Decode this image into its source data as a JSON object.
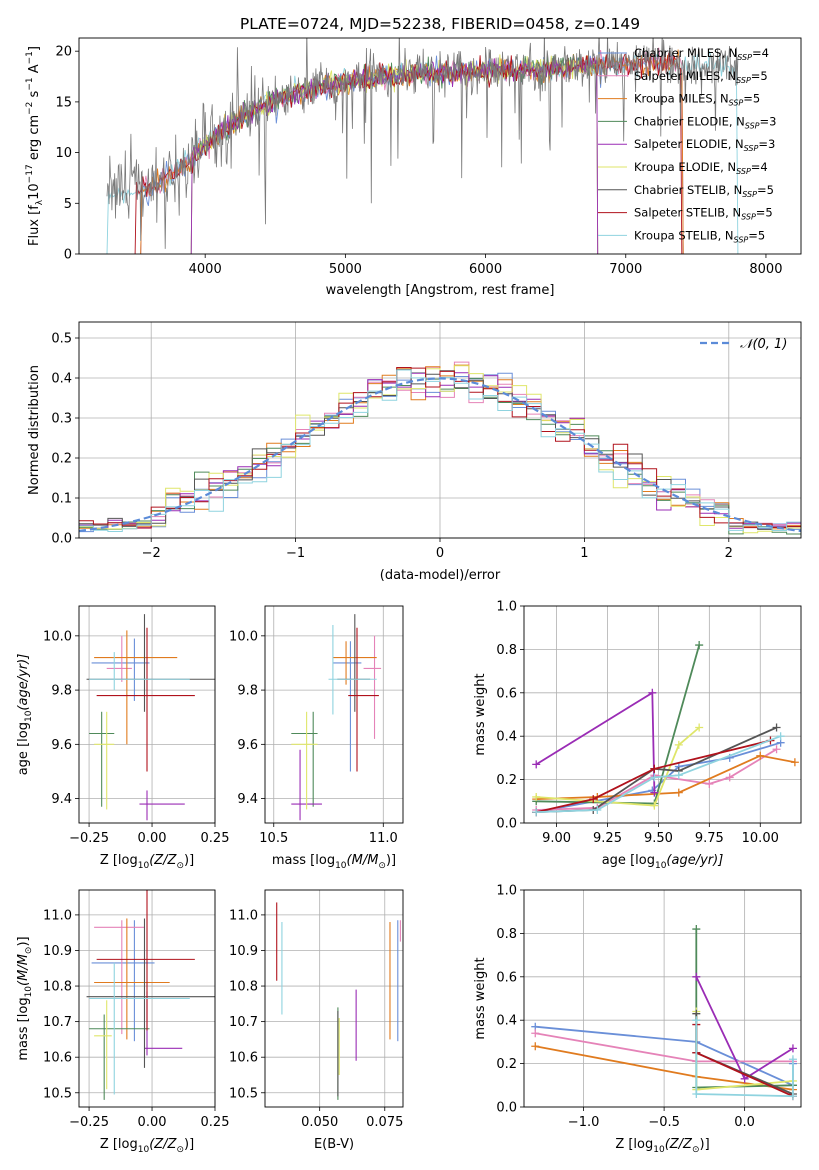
{
  "colors": {
    "Chabrier MILES": "#6a8fd8",
    "Salpeter MILES": "#e583b8",
    "Kroupa MILES": "#e07b1f",
    "Chabrier ELODIE": "#4f8a5a",
    "Salpeter ELODIE": "#9a2cb5",
    "Kroupa ELODIE": "#dfe66a",
    "Chabrier STELIB": "#555555",
    "Salpeter STELIB": "#b0121c",
    "Kroupa STELIB": "#8fd3df",
    "gauss": "#5b8bd8"
  },
  "chart_data": [
    {
      "id": "spectrum",
      "type": "line",
      "title": "PLATE=0724, MJD=52238, FIBERID=0458, z=0.149",
      "xlabel": "wavelength [Angstrom, rest frame]",
      "ylabel": "Flux [f",
      "ylabel_parts": [
        "Flux [f",
        "λ",
        "10",
        "−17",
        " erg cm",
        "−2",
        " s",
        "−1",
        " A",
        "−1",
        "]"
      ],
      "xlim": [
        3100,
        8250
      ],
      "ylim": [
        0,
        21.3
      ],
      "xticks": [
        "4000",
        "5000",
        "6000",
        "7000",
        "8000"
      ],
      "yticks": [
        "0",
        "5",
        "10",
        "15",
        "20"
      ],
      "continuum": {
        "x": [
          3300,
          3500,
          3700,
          3900,
          4000,
          4200,
          4500,
          4800,
          5000,
          5300,
          5600,
          6000,
          6400,
          6800,
          7200,
          7500,
          7800
        ],
        "y": [
          6.0,
          6.2,
          7.2,
          9.5,
          10.8,
          13.0,
          15.2,
          16.4,
          17.0,
          17.5,
          17.8,
          18.0,
          18.3,
          18.6,
          18.8,
          18.7,
          18.5
        ]
      },
      "legend": [
        {
          "imf": "Chabrier",
          "lib": "MILES",
          "n": "4"
        },
        {
          "imf": "Salpeter",
          "lib": "MILES",
          "n": "5"
        },
        {
          "imf": "Kroupa",
          "lib": "MILES",
          "n": "5"
        },
        {
          "imf": "Chabrier",
          "lib": "ELODIE",
          "n": "3"
        },
        {
          "imf": "Salpeter",
          "lib": "ELODIE",
          "n": "3"
        },
        {
          "imf": "Kroupa",
          "lib": "ELODIE",
          "n": "4"
        },
        {
          "imf": "Chabrier",
          "lib": "STELIB",
          "n": "5"
        },
        {
          "imf": "Salpeter",
          "lib": "STELIB",
          "n": "5"
        },
        {
          "imf": "Kroupa",
          "lib": "STELIB",
          "n": "5"
        }
      ],
      "legend_prefix": "N",
      "legend_sub": "SSP",
      "legend_position": "right",
      "grid": false
    },
    {
      "id": "residuals",
      "type": "histogram",
      "xlabel": "(data-model)/error",
      "ylabel": "Normed distribution",
      "xlim": [
        -2.5,
        2.5
      ],
      "ylim": [
        0,
        0.54
      ],
      "xticks": [
        "−2",
        "−1",
        "0",
        "1",
        "2"
      ],
      "yticks": [
        "0.0",
        "0.1",
        "0.2",
        "0.3",
        "0.4",
        "0.5"
      ],
      "bin_width": 0.1,
      "bin_start": -2.5,
      "legend": "𝒩(0, 1)",
      "legend_position": "top-right",
      "grid": true
    },
    {
      "id": "age-Z",
      "type": "errorbar",
      "xlabel": "Z [log",
      "xlabel_parts": [
        "Z [log",
        "10",
        "(Z/Z",
        "⊙",
        ")]"
      ],
      "ylabel_parts": [
        "age  [log",
        "10",
        "(age/yr)]"
      ],
      "xlim": [
        -0.29,
        0.25
      ],
      "ylim": [
        9.31,
        10.11
      ],
      "xticks": [
        "−0.25",
        "0.00",
        "0.25"
      ],
      "yticks": [
        "9.4",
        "9.6",
        "9.8",
        "10.0"
      ],
      "points": [
        {
          "model": "Chabrier MILES",
          "x": -0.07,
          "xerr": [
            0.17,
            0.06
          ],
          "y": 9.9,
          "yerr": [
            0.14,
            0.09
          ]
        },
        {
          "model": "Salpeter MILES",
          "x": -0.12,
          "xerr": [
            0.06,
            0.04
          ],
          "y": 9.88,
          "yerr": [
            0.05,
            0.12
          ]
        },
        {
          "model": "Kroupa MILES",
          "x": -0.1,
          "xerr": [
            0.13,
            0.2
          ],
          "y": 9.92,
          "yerr": [
            0.32,
            0.1
          ]
        },
        {
          "model": "Chabrier ELODIE",
          "x": -0.2,
          "xerr": [
            0.05,
            0.05
          ],
          "y": 9.64,
          "yerr": [
            0.27,
            0.08
          ]
        },
        {
          "model": "Salpeter ELODIE",
          "x": -0.02,
          "xerr": [
            0.03,
            0.15
          ],
          "y": 9.38,
          "yerr": [
            0.06,
            0.05
          ]
        },
        {
          "model": "Kroupa ELODIE",
          "x": -0.18,
          "xerr": [
            0.05,
            0.03
          ],
          "y": 9.6,
          "yerr": [
            0.24,
            0.12
          ]
        },
        {
          "model": "Chabrier STELIB",
          "x": -0.03,
          "xerr": [
            0.23,
            0.28
          ],
          "y": 9.84,
          "yerr": [
            0.12,
            0.24
          ]
        },
        {
          "model": "Salpeter STELIB",
          "x": -0.02,
          "xerr": [
            0.2,
            0.19
          ],
          "y": 9.78,
          "yerr": [
            0.28,
            0.25
          ]
        },
        {
          "model": "Kroupa STELIB",
          "x": -0.15,
          "xerr": [
            0.1,
            0.3
          ],
          "y": 9.84,
          "yerr": [
            0.04,
            0.1
          ]
        }
      ],
      "grid": true
    },
    {
      "id": "age-mass",
      "type": "errorbar",
      "xlabel_parts": [
        "mass [log",
        "10",
        "(M/M",
        "⊙",
        ")]"
      ],
      "xlim": [
        10.46,
        11.09
      ],
      "ylim": [
        9.31,
        10.11
      ],
      "xticks": [
        "10.5",
        "11.0"
      ],
      "yticks": [
        "9.4",
        "9.6",
        "9.8",
        "10.0"
      ],
      "points": [
        {
          "model": "Chabrier MILES",
          "x": 10.85,
          "xerr": [
            0.08,
            0.05
          ],
          "y": 9.9,
          "yerr": [
            0.4,
            0.08
          ]
        },
        {
          "model": "Salpeter MILES",
          "x": 10.96,
          "xerr": [
            0.05,
            0.03
          ],
          "y": 9.88,
          "yerr": [
            0.26,
            0.12
          ]
        },
        {
          "model": "Kroupa MILES",
          "x": 10.83,
          "xerr": [
            0.06,
            0.14
          ],
          "y": 9.92,
          "yerr": [
            0.1,
            0.06
          ]
        },
        {
          "model": "Chabrier ELODIE",
          "x": 10.68,
          "xerr": [
            0.1,
            0.02
          ],
          "y": 9.64,
          "yerr": [
            0.27,
            0.08
          ]
        },
        {
          "model": "Salpeter ELODIE",
          "x": 10.62,
          "xerr": [
            0.04,
            0.1
          ],
          "y": 9.38,
          "yerr": [
            0.06,
            0.2
          ]
        },
        {
          "model": "Kroupa ELODIE",
          "x": 10.65,
          "xerr": [
            0.07,
            0.05
          ],
          "y": 9.6,
          "yerr": [
            0.24,
            0.12
          ]
        },
        {
          "model": "Chabrier STELIB",
          "x": 10.87,
          "xerr": [
            0.08,
            0.07
          ],
          "y": 9.84,
          "yerr": [
            0.12,
            0.24
          ]
        },
        {
          "model": "Salpeter STELIB",
          "x": 10.88,
          "xerr": [
            0.04,
            0.1
          ],
          "y": 9.78,
          "yerr": [
            0.28,
            0.25
          ]
        },
        {
          "model": "Kroupa STELIB",
          "x": 10.77,
          "xerr": [
            0.02,
            0.2
          ],
          "y": 9.84,
          "yerr": [
            0.13,
            0.2
          ]
        }
      ],
      "grid": true
    },
    {
      "id": "weight-age",
      "type": "line",
      "xlabel_parts": [
        "age  [log",
        "10",
        "(age/yr)]"
      ],
      "ylabel": "mass weight",
      "xlim": [
        8.84,
        10.2
      ],
      "ylim": [
        0,
        1
      ],
      "xticks": [
        "9.00",
        "9.25",
        "9.50",
        "9.75",
        "10.00"
      ],
      "yticks": [
        "0.0",
        "0.2",
        "0.4",
        "0.6",
        "0.8",
        "1.0"
      ],
      "series": [
        {
          "model": "Chabrier MILES",
          "x": [
            8.9,
            9.47,
            9.6,
            9.85,
            10.1
          ],
          "y": [
            0.05,
            0.15,
            0.26,
            0.3,
            0.37
          ]
        },
        {
          "model": "Salpeter MILES",
          "x": [
            8.9,
            9.2,
            9.48,
            9.75,
            9.85,
            10.08
          ],
          "y": [
            0.06,
            0.07,
            0.22,
            0.18,
            0.21,
            0.34
          ]
        },
        {
          "model": "Kroupa MILES",
          "x": [
            8.9,
            9.2,
            9.6,
            10.0,
            10.17
          ],
          "y": [
            0.11,
            0.12,
            0.14,
            0.31,
            0.28
          ]
        },
        {
          "model": "Chabrier ELODIE",
          "x": [
            8.9,
            9.48,
            9.7
          ],
          "y": [
            0.1,
            0.09,
            0.82
          ]
        },
        {
          "model": "Salpeter ELODIE",
          "x": [
            8.9,
            9.47,
            9.48
          ],
          "y": [
            0.27,
            0.6,
            0.14
          ]
        },
        {
          "model": "Kroupa ELODIE",
          "x": [
            8.9,
            9.48,
            9.6,
            9.7
          ],
          "y": [
            0.12,
            0.08,
            0.36,
            0.44
          ]
        },
        {
          "model": "Chabrier STELIB",
          "x": [
            8.9,
            9.18,
            9.48,
            9.6,
            10.08
          ],
          "y": [
            0.05,
            0.06,
            0.25,
            0.24,
            0.44
          ]
        },
        {
          "model": "Salpeter STELIB",
          "x": [
            8.9,
            9.18,
            9.48,
            10.05
          ],
          "y": [
            0.05,
            0.11,
            0.25,
            0.38
          ]
        },
        {
          "model": "Kroupa STELIB",
          "x": [
            8.9,
            9.2,
            9.48,
            9.6,
            10.1
          ],
          "y": [
            0.05,
            0.06,
            0.21,
            0.22,
            0.4
          ]
        }
      ],
      "grid": true
    },
    {
      "id": "mass-Z",
      "type": "errorbar",
      "xlabel_parts": [
        "Z [log",
        "10",
        "(Z/Z",
        "⊙",
        ")]"
      ],
      "ylabel_parts": [
        "mass [log",
        "10",
        "(M/M",
        "⊙",
        ")]"
      ],
      "xlim": [
        -0.29,
        0.25
      ],
      "ylim": [
        10.46,
        11.07
      ],
      "xticks": [
        "−0.25",
        "0.00",
        "0.25"
      ],
      "yticks": [
        "10.5",
        "10.6",
        "10.7",
        "10.8",
        "10.9",
        "11.0"
      ],
      "points": [
        {
          "model": "Chabrier MILES",
          "x": -0.07,
          "xerr": [
            0.17,
            0.08
          ],
          "y": 10.865,
          "yerr": [
            0.22,
            0.12
          ]
        },
        {
          "model": "Salpeter MILES",
          "x": -0.12,
          "xerr": [
            0.11,
            0.09
          ],
          "y": 10.965,
          "yerr": [
            0.3,
            0.02
          ]
        },
        {
          "model": "Kroupa MILES",
          "x": -0.1,
          "xerr": [
            0.13,
            0.17
          ],
          "y": 10.81,
          "yerr": [
            0.16,
            0.18
          ]
        },
        {
          "model": "Chabrier ELODIE",
          "x": -0.19,
          "xerr": [
            0.06,
            0.18
          ],
          "y": 10.68,
          "yerr": [
            0.2,
            0.04
          ]
        },
        {
          "model": "Salpeter ELODIE",
          "x": -0.02,
          "xerr": [
            0.01,
            0.14
          ],
          "y": 10.625,
          "yerr": [
            0.02,
            0.16
          ]
        },
        {
          "model": "Kroupa ELODIE",
          "x": -0.18,
          "xerr": [
            0.05,
            0.02
          ],
          "y": 10.66,
          "yerr": [
            0.15,
            0.1
          ]
        },
        {
          "model": "Chabrier STELIB",
          "x": -0.03,
          "xerr": [
            0.23,
            0.28
          ],
          "y": 10.77,
          "yerr": [
            0.2,
            0.22
          ]
        },
        {
          "model": "Salpeter STELIB",
          "x": -0.02,
          "xerr": [
            0.2,
            0.19
          ],
          "y": 10.875,
          "yerr": [
            0.2,
            0.26
          ]
        },
        {
          "model": "Kroupa STELIB",
          "x": -0.15,
          "xerr": [
            0.1,
            0.3
          ],
          "y": 10.765,
          "yerr": [
            0.27,
            0.1
          ]
        }
      ],
      "grid": true
    },
    {
      "id": "mass-ebv",
      "type": "errorbar",
      "xlabel": "E(B-V)",
      "xlim": [
        0.029,
        0.082
      ],
      "ylim": [
        10.46,
        11.07
      ],
      "xticks": [
        "0.050",
        "0.075"
      ],
      "yticks": [
        "10.5",
        "10.6",
        "10.7",
        "10.8",
        "10.9",
        "11.0"
      ],
      "points": [
        {
          "model": "Chabrier MILES",
          "x": 0.08,
          "y": 10.825,
          "yerr": [
            0.18,
            0.16
          ]
        },
        {
          "model": "Salpeter MILES",
          "x": 0.081,
          "y": 10.965,
          "yerr": [
            0.04,
            0.02
          ]
        },
        {
          "model": "Kroupa MILES",
          "x": 0.077,
          "y": 10.82,
          "yerr": [
            0.17,
            0.16
          ]
        },
        {
          "model": "Chabrier ELODIE",
          "x": 0.057,
          "y": 10.6,
          "yerr": [
            0.12,
            0.14
          ]
        },
        {
          "model": "Salpeter ELODIE",
          "x": 0.064,
          "y": 10.69,
          "yerr": [
            0.1,
            0.1
          ]
        },
        {
          "model": "Kroupa ELODIE",
          "x": 0.0575,
          "y": 10.65,
          "yerr": [
            0.1,
            0.06
          ]
        },
        {
          "model": "Chabrier STELIB",
          "x": 0.057,
          "y": 10.61,
          "yerr": [
            0.12,
            0.12
          ]
        },
        {
          "model": "Salpeter STELIB",
          "x": 0.0335,
          "y": 10.925,
          "yerr": [
            0.11,
            0.11
          ]
        },
        {
          "model": "Kroupa STELIB",
          "x": 0.0355,
          "y": 10.85,
          "yerr": [
            0.13,
            0.13
          ]
        }
      ],
      "grid": true
    },
    {
      "id": "weight-Z",
      "type": "line",
      "xlabel_parts": [
        "Z [log",
        "10",
        "(Z/Z",
        "⊙",
        ")]"
      ],
      "ylabel": "mass weight",
      "xlim": [
        -1.37,
        0.35
      ],
      "ylim": [
        0,
        1
      ],
      "xticks": [
        "−1.0",
        "−0.5",
        "0.0"
      ],
      "yticks": [
        "0.0",
        "0.2",
        "0.4",
        "0.6",
        "0.8",
        "1.0"
      ],
      "series": [
        {
          "model": "Chabrier MILES",
          "x": [
            -1.3,
            -0.3,
            0.3,
            0.3
          ],
          "y": [
            0.37,
            0.3,
            0.1,
            0.2
          ]
        },
        {
          "model": "Salpeter MILES",
          "x": [
            -1.3,
            -0.3,
            0.3
          ],
          "y": [
            0.34,
            0.21,
            0.21
          ]
        },
        {
          "model": "Kroupa MILES",
          "x": [
            -1.3,
            -0.3,
            0.3
          ],
          "y": [
            0.28,
            0.14,
            0.08
          ]
        },
        {
          "model": "Chabrier ELODIE",
          "x": [
            -0.3,
            -0.3,
            0.3
          ],
          "y": [
            0.82,
            0.09,
            0.1
          ]
        },
        {
          "model": "Salpeter ELODIE",
          "x": [
            -0.3,
            0.0,
            0.3
          ],
          "y": [
            0.6,
            0.13,
            0.27
          ]
        },
        {
          "model": "Kroupa ELODIE",
          "x": [
            -0.3,
            -0.3,
            0.3
          ],
          "y": [
            0.44,
            0.08,
            0.12
          ]
        },
        {
          "model": "Chabrier STELIB",
          "x": [
            -0.3,
            -0.3,
            0.3
          ],
          "y": [
            0.43,
            0.25,
            0.06
          ]
        },
        {
          "model": "Salpeter STELIB",
          "x": [
            -0.3,
            -0.3,
            0.3
          ],
          "y": [
            0.38,
            0.25,
            0.05
          ]
        },
        {
          "model": "Kroupa STELIB",
          "x": [
            -0.3,
            -0.3,
            0.3,
            0.3
          ],
          "y": [
            0.4,
            0.06,
            0.05,
            0.22
          ]
        }
      ],
      "grid": true
    }
  ]
}
